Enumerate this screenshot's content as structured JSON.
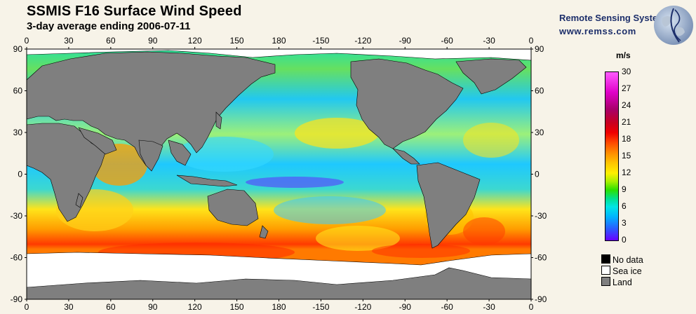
{
  "header": {
    "title": "SSMIS F16 Surface Wind Speed",
    "subtitle": "3-day average ending 2006-07-11"
  },
  "brand": {
    "name": "Remote Sensing Systems",
    "url": "www.remss.com"
  },
  "map": {
    "longitude_ticks": [
      "0",
      "30",
      "60",
      "90",
      "120",
      "150",
      "180",
      "-150",
      "-120",
      "-90",
      "-60",
      "-30",
      "0"
    ],
    "latitude_ticks": [
      "90",
      "60",
      "30",
      "0",
      "-30",
      "-60",
      "-90"
    ],
    "land_color": "#7f7f7f",
    "ice_color": "#ffffff"
  },
  "colorbar": {
    "unit": "m/s",
    "min": 0,
    "max": 30,
    "ticks": [
      "30",
      "27",
      "24",
      "21",
      "18",
      "15",
      "12",
      "9",
      "6",
      "3",
      "0"
    ]
  },
  "legend": [
    {
      "label": "No data",
      "color": "#000000"
    },
    {
      "label": "Sea ice",
      "color": "#ffffff"
    },
    {
      "label": "Land",
      "color": "#7f7f7f"
    }
  ]
}
